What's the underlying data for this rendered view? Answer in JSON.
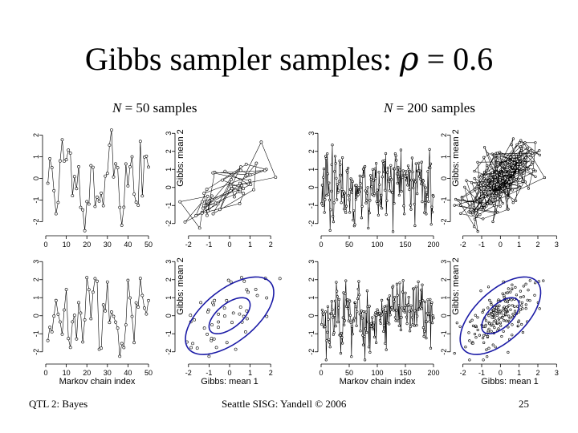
{
  "title": {
    "text": "Gibbs sampler samples:",
    "symbol": "ρ",
    "eq": "= 0.6"
  },
  "panel_labels": {
    "left": {
      "n": "N",
      "rest": " = 50 samples"
    },
    "right": {
      "n": "N",
      "rest": " = 200 samples"
    }
  },
  "footer": {
    "left": "QTL 2: Bayes",
    "center": "Seattle SISG: Yandell © 2006",
    "page": "25"
  },
  "colors": {
    "ellipse": "#1a1aa6",
    "series": "#000000"
  },
  "chart_data": [
    {
      "type": "line",
      "id": "trace-50-mean1",
      "xlabel": "",
      "ylabel": "",
      "xlim": [
        0,
        50
      ],
      "ylim": [
        -2.5,
        2.5
      ],
      "xticks": [
        0,
        10,
        20,
        30,
        40,
        50
      ],
      "yticks": [
        -2,
        -1,
        0,
        1,
        2
      ],
      "n": 50,
      "seed": 11,
      "rho": 0.6
    },
    {
      "type": "scatter",
      "id": "scatter-50-top",
      "xlabel": "",
      "ylabel": "Gibbs: mean 2",
      "xlim": [
        -2.5,
        2.5
      ],
      "ylim": [
        -2.5,
        3.5
      ],
      "xticks": [
        -2,
        -1,
        0,
        1,
        2
      ],
      "yticks": [
        -2,
        -1,
        0,
        1,
        2,
        3
      ],
      "n": 50,
      "seed": 11,
      "rho": 0.6,
      "connect": true
    },
    {
      "type": "line",
      "id": "trace-50-mean2",
      "xlabel": "Markov chain index",
      "ylabel": "",
      "xlim": [
        0,
        50
      ],
      "ylim": [
        -2.5,
        3.5
      ],
      "xticks": [
        0,
        10,
        20,
        30,
        40,
        50
      ],
      "yticks": [
        -2,
        -1,
        0,
        1,
        2,
        3
      ],
      "n": 50,
      "seed": 23,
      "rho": 0.6
    },
    {
      "type": "scatter",
      "id": "scatter-50-bottom",
      "xlabel": "Gibbs: mean 1",
      "ylabel": "Gibbs: mean 2",
      "xlim": [
        -2.5,
        2.5
      ],
      "ylim": [
        -2.5,
        3.5
      ],
      "xticks": [
        -2,
        -1,
        0,
        1,
        2
      ],
      "yticks": [
        -2,
        -1,
        0,
        1,
        2,
        3
      ],
      "n": 50,
      "seed": 23,
      "rho": 0.6,
      "ellipses": [
        1.0,
        2.15
      ]
    },
    {
      "type": "line",
      "id": "trace-200-mean1",
      "xlabel": "",
      "ylabel": "",
      "xlim": [
        0,
        200
      ],
      "ylim": [
        -2.5,
        3.5
      ],
      "xticks": [
        0,
        50,
        100,
        150,
        200
      ],
      "yticks": [
        -2,
        -1,
        0,
        1,
        2,
        3
      ],
      "n": 200,
      "seed": 37,
      "rho": 0.6
    },
    {
      "type": "scatter",
      "id": "scatter-200-top",
      "xlabel": "",
      "ylabel": "Gibbs: mean 2",
      "xlim": [
        -2.5,
        3.5
      ],
      "ylim": [
        -2.5,
        2.5
      ],
      "xticks": [
        -2,
        -1,
        0,
        1,
        2,
        3
      ],
      "yticks": [
        -2,
        -1,
        0,
        1,
        2
      ],
      "n": 200,
      "seed": 37,
      "rho": 0.6,
      "connect": true
    },
    {
      "type": "line",
      "id": "trace-200-mean2",
      "xlabel": "Markov chain index",
      "ylabel": "",
      "xlim": [
        0,
        200
      ],
      "ylim": [
        -2.5,
        3.5
      ],
      "xticks": [
        0,
        50,
        100,
        150,
        200
      ],
      "yticks": [
        -2,
        -1,
        0,
        1,
        2,
        3
      ],
      "n": 200,
      "seed": 53,
      "rho": 0.6
    },
    {
      "type": "scatter",
      "id": "scatter-200-bottom",
      "xlabel": "Gibbs: mean 1",
      "ylabel": "Gibbs: mean 2",
      "xlim": [
        -2.5,
        3.5
      ],
      "ylim": [
        -2.5,
        3.5
      ],
      "xticks": [
        -2,
        -1,
        0,
        1,
        2,
        3
      ],
      "yticks": [
        -2,
        -1,
        0,
        1,
        2,
        3
      ],
      "n": 200,
      "seed": 53,
      "rho": 0.6,
      "ellipses": [
        1.0,
        2.15
      ]
    }
  ]
}
